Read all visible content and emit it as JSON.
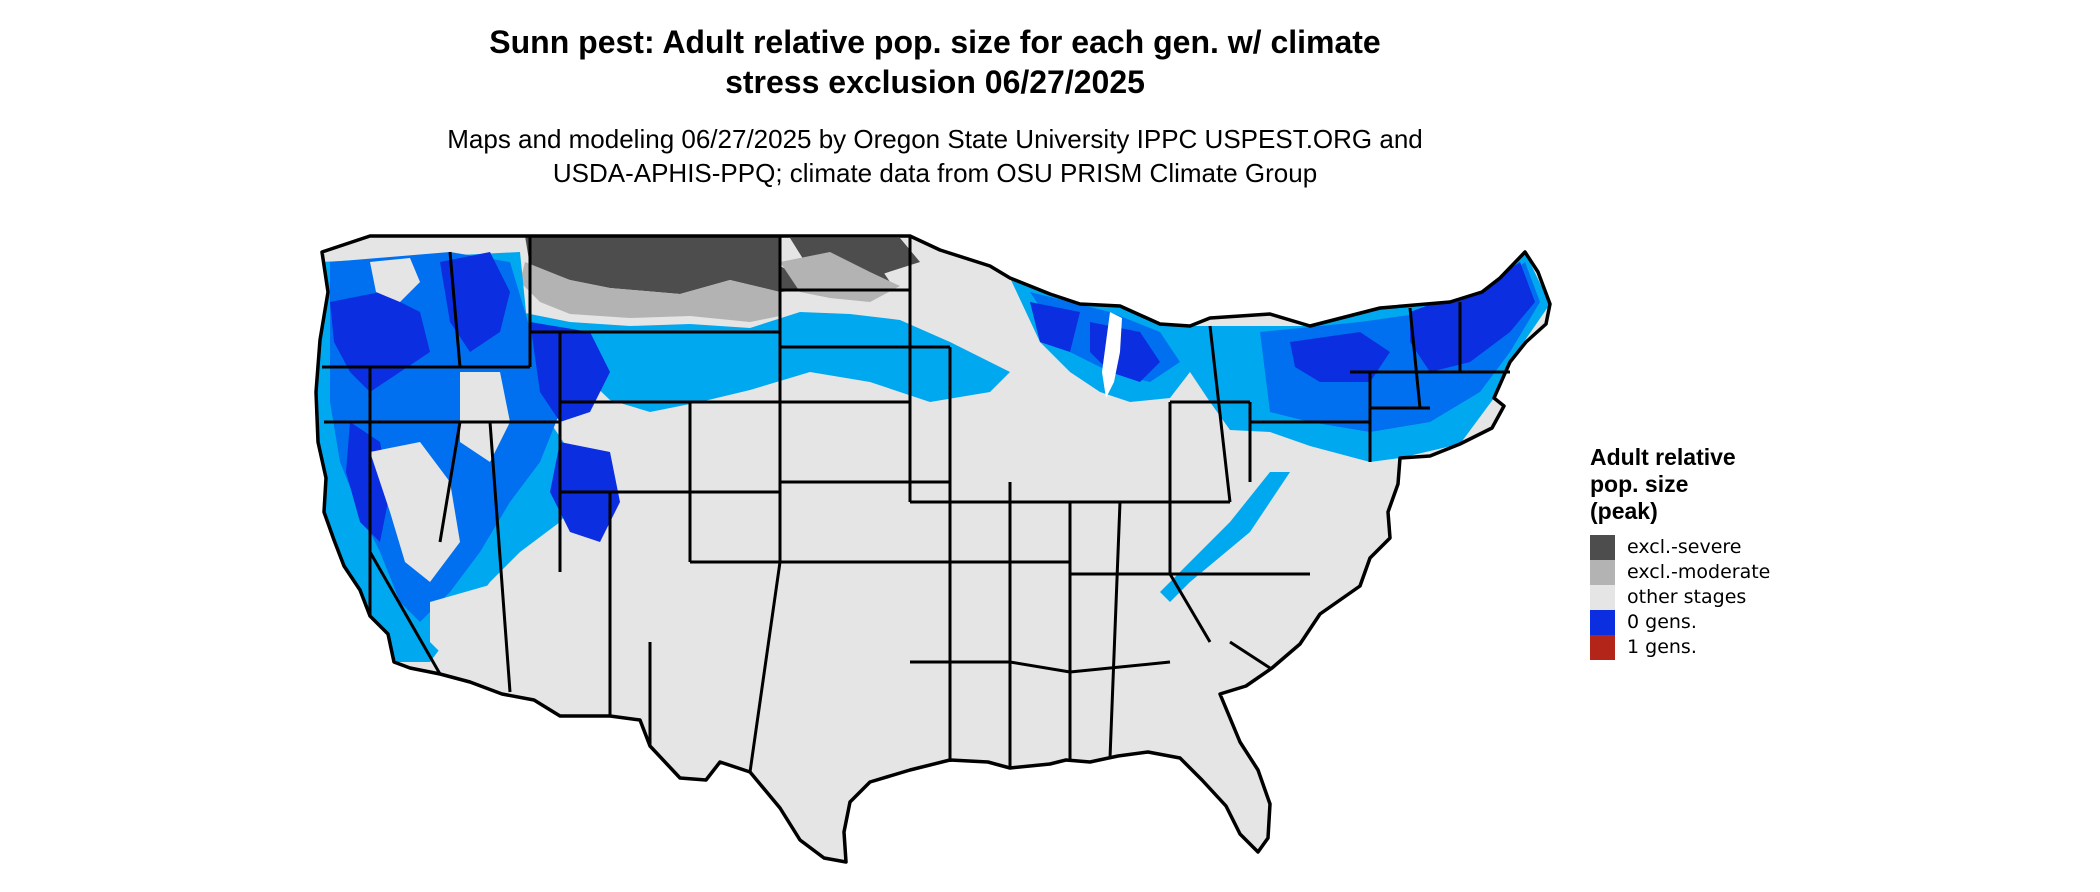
{
  "map": {
    "title_lines": [
      "Sunn pest: Adult relative pop. size for each gen. w/ climate",
      "stress exclusion 06/27/2025"
    ],
    "subtitle_lines": [
      "Maps and modeling 06/27/2025 by Oregon State University IPPC USPEST.ORG and",
      "USDA-APHIS-PPQ; climate data from OSU PRISM Climate Group"
    ],
    "colors": {
      "background_land": "#e5e5e5",
      "border": "#000000",
      "excl_severe": "#4d4d4d",
      "excl_moderate": "#b3b3b3",
      "other_stages": "#e5e5e5",
      "gen0": "#0a2ee0",
      "gen0_light": "#00a8f0",
      "gen0_mid": "#0070f0",
      "gen1": "#b22518"
    }
  },
  "legend": {
    "title_lines": [
      "Adult relative",
      "pop. size",
      "(peak)"
    ],
    "items": [
      {
        "label": "excl.-severe",
        "color": "#4d4d4d"
      },
      {
        "label": "excl.-moderate",
        "color": "#b3b3b3"
      },
      {
        "label": "other stages",
        "color": "#e5e5e5"
      },
      {
        "label": "0 gens.",
        "color": "#0a2ee0"
      },
      {
        "label": "1 gens.",
        "color": "#b22518"
      }
    ]
  }
}
